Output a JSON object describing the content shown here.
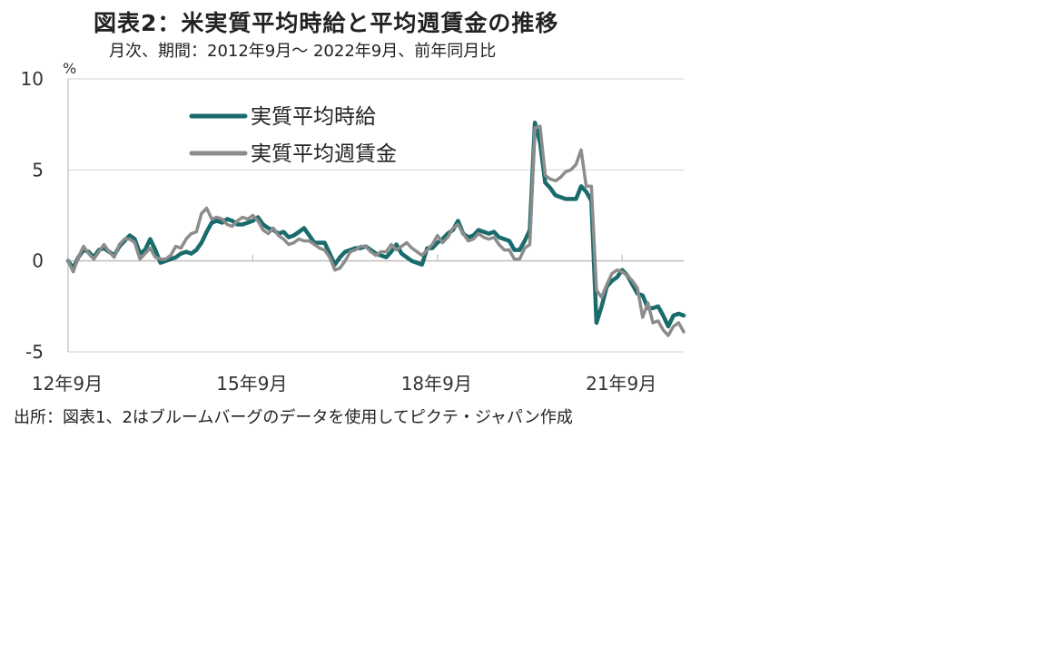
{
  "title": "図表2：米実質平均時給と平均週賃金の推移",
  "subtitle": "月次、期間：2012年9月～ 2022年9月、前年同月比",
  "source": "出所：図表1、2はブルームバーグのデータを使用してピクテ・ジャパン作成",
  "colors": {
    "series1": "#1a6b6b",
    "series2": "#8c8c8c",
    "grid": "#d9d9d9",
    "axis": "#bfbfbf"
  },
  "chart_data": {
    "type": "line",
    "y_unit": "%",
    "ylim": [
      -5,
      10
    ],
    "yticks": [
      10,
      5,
      0,
      -5
    ],
    "xlim": [
      "2012-09",
      "2022-09"
    ],
    "xticks": [
      {
        "label": "12年9月",
        "date": "2012-09"
      },
      {
        "label": "15年9月",
        "date": "2015-09"
      },
      {
        "label": "18年9月",
        "date": "2018-09"
      },
      {
        "label": "21年9月",
        "date": "2021-09"
      }
    ],
    "grid": "horizontal",
    "legend_position": "top-left",
    "series": [
      {
        "name": "実質平均時給",
        "points": [
          [
            "2012-09",
            0.0
          ],
          [
            "2012-10",
            -0.4
          ],
          [
            "2012-11",
            0.2
          ],
          [
            "2012-12",
            0.6
          ],
          [
            "2013-01",
            0.5
          ],
          [
            "2013-02",
            0.2
          ],
          [
            "2013-03",
            0.6
          ],
          [
            "2013-04",
            0.7
          ],
          [
            "2013-05",
            0.5
          ],
          [
            "2013-06",
            0.3
          ],
          [
            "2013-07",
            0.8
          ],
          [
            "2013-08",
            1.1
          ],
          [
            "2013-09",
            1.4
          ],
          [
            "2013-10",
            1.2
          ],
          [
            "2013-11",
            0.4
          ],
          [
            "2013-12",
            0.6
          ],
          [
            "2014-01",
            1.2
          ],
          [
            "2014-02",
            0.6
          ],
          [
            "2014-03",
            -0.1
          ],
          [
            "2014-04",
            0.0
          ],
          [
            "2014-05",
            0.1
          ],
          [
            "2014-06",
            0.2
          ],
          [
            "2014-07",
            0.4
          ],
          [
            "2014-08",
            0.5
          ],
          [
            "2014-09",
            0.4
          ],
          [
            "2014-10",
            0.6
          ],
          [
            "2014-11",
            1.0
          ],
          [
            "2014-12",
            1.6
          ],
          [
            "2015-01",
            2.1
          ],
          [
            "2015-02",
            2.2
          ],
          [
            "2015-03",
            2.1
          ],
          [
            "2015-04",
            2.3
          ],
          [
            "2015-05",
            2.2
          ],
          [
            "2015-06",
            2.0
          ],
          [
            "2015-07",
            2.0
          ],
          [
            "2015-08",
            2.1
          ],
          [
            "2015-09",
            2.2
          ],
          [
            "2015-10",
            2.4
          ],
          [
            "2015-11",
            2.0
          ],
          [
            "2015-12",
            1.8
          ],
          [
            "2016-01",
            1.7
          ],
          [
            "2016-02",
            1.5
          ],
          [
            "2016-03",
            1.6
          ],
          [
            "2016-04",
            1.3
          ],
          [
            "2016-05",
            1.4
          ],
          [
            "2016-06",
            1.6
          ],
          [
            "2016-07",
            1.8
          ],
          [
            "2016-08",
            1.4
          ],
          [
            "2016-09",
            1.0
          ],
          [
            "2016-10",
            1.0
          ],
          [
            "2016-11",
            1.0
          ],
          [
            "2016-12",
            0.4
          ],
          [
            "2017-01",
            -0.2
          ],
          [
            "2017-02",
            0.2
          ],
          [
            "2017-03",
            0.5
          ],
          [
            "2017-04",
            0.6
          ],
          [
            "2017-05",
            0.7
          ],
          [
            "2017-06",
            0.7
          ],
          [
            "2017-07",
            0.8
          ],
          [
            "2017-08",
            0.6
          ],
          [
            "2017-09",
            0.4
          ],
          [
            "2017-10",
            0.3
          ],
          [
            "2017-11",
            0.2
          ],
          [
            "2017-12",
            0.5
          ],
          [
            "2018-01",
            0.9
          ],
          [
            "2018-02",
            0.4
          ],
          [
            "2018-03",
            0.2
          ],
          [
            "2018-04",
            0.0
          ],
          [
            "2018-05",
            -0.1
          ],
          [
            "2018-06",
            -0.2
          ],
          [
            "2018-07",
            0.7
          ],
          [
            "2018-08",
            0.7
          ],
          [
            "2018-09",
            1.0
          ],
          [
            "2018-10",
            1.2
          ],
          [
            "2018-11",
            1.5
          ],
          [
            "2018-12",
            1.7
          ],
          [
            "2019-01",
            2.2
          ],
          [
            "2019-02",
            1.5
          ],
          [
            "2019-03",
            1.3
          ],
          [
            "2019-04",
            1.4
          ],
          [
            "2019-05",
            1.7
          ],
          [
            "2019-06",
            1.6
          ],
          [
            "2019-07",
            1.5
          ],
          [
            "2019-08",
            1.6
          ],
          [
            "2019-09",
            1.3
          ],
          [
            "2019-10",
            1.2
          ],
          [
            "2019-11",
            1.1
          ],
          [
            "2019-12",
            0.6
          ],
          [
            "2020-01",
            0.6
          ],
          [
            "2020-02",
            1.1
          ],
          [
            "2020-03",
            1.7
          ],
          [
            "2020-04",
            7.6
          ],
          [
            "2020-05",
            6.5
          ],
          [
            "2020-06",
            4.3
          ],
          [
            "2020-07",
            4.0
          ],
          [
            "2020-08",
            3.6
          ],
          [
            "2020-09",
            3.5
          ],
          [
            "2020-10",
            3.4
          ],
          [
            "2020-11",
            3.4
          ],
          [
            "2020-12",
            3.4
          ],
          [
            "2021-01",
            4.1
          ],
          [
            "2021-02",
            3.8
          ],
          [
            "2021-03",
            3.3
          ],
          [
            "2021-04",
            -3.4
          ],
          [
            "2021-05",
            -2.5
          ],
          [
            "2021-06",
            -1.4
          ],
          [
            "2021-07",
            -1.1
          ],
          [
            "2021-08",
            -0.9
          ],
          [
            "2021-09",
            -0.5
          ],
          [
            "2021-10",
            -0.8
          ],
          [
            "2021-11",
            -1.3
          ],
          [
            "2021-12",
            -1.8
          ],
          [
            "2022-01",
            -1.9
          ],
          [
            "2022-02",
            -2.6
          ],
          [
            "2022-03",
            -2.6
          ],
          [
            "2022-04",
            -2.5
          ],
          [
            "2022-05",
            -3.0
          ],
          [
            "2022-06",
            -3.6
          ],
          [
            "2022-07",
            -3.0
          ],
          [
            "2022-08",
            -2.9
          ],
          [
            "2022-09",
            -3.0
          ]
        ]
      },
      {
        "name": "実質平均週賃金",
        "points": [
          [
            "2012-09",
            0.0
          ],
          [
            "2012-10",
            -0.6
          ],
          [
            "2012-11",
            0.2
          ],
          [
            "2012-12",
            0.8
          ],
          [
            "2013-01",
            0.4
          ],
          [
            "2013-02",
            0.1
          ],
          [
            "2013-03",
            0.5
          ],
          [
            "2013-04",
            0.9
          ],
          [
            "2013-05",
            0.5
          ],
          [
            "2013-06",
            0.2
          ],
          [
            "2013-07",
            0.9
          ],
          [
            "2013-08",
            1.2
          ],
          [
            "2013-09",
            1.2
          ],
          [
            "2013-10",
            1.0
          ],
          [
            "2013-11",
            0.1
          ],
          [
            "2013-12",
            0.4
          ],
          [
            "2014-01",
            0.7
          ],
          [
            "2014-02",
            0.2
          ],
          [
            "2014-03",
            0.1
          ],
          [
            "2014-04",
            0.1
          ],
          [
            "2014-05",
            0.3
          ],
          [
            "2014-06",
            0.8
          ],
          [
            "2014-07",
            0.7
          ],
          [
            "2014-08",
            1.2
          ],
          [
            "2014-09",
            1.5
          ],
          [
            "2014-10",
            1.6
          ],
          [
            "2014-11",
            2.6
          ],
          [
            "2014-12",
            2.9
          ],
          [
            "2015-01",
            2.3
          ],
          [
            "2015-02",
            2.4
          ],
          [
            "2015-03",
            2.3
          ],
          [
            "2015-04",
            2.0
          ],
          [
            "2015-05",
            1.9
          ],
          [
            "2015-06",
            2.2
          ],
          [
            "2015-07",
            2.4
          ],
          [
            "2015-08",
            2.3
          ],
          [
            "2015-09",
            2.5
          ],
          [
            "2015-10",
            2.2
          ],
          [
            "2015-11",
            1.7
          ],
          [
            "2015-12",
            1.5
          ],
          [
            "2016-01",
            1.8
          ],
          [
            "2016-02",
            1.4
          ],
          [
            "2016-03",
            1.2
          ],
          [
            "2016-04",
            0.9
          ],
          [
            "2016-05",
            1.0
          ],
          [
            "2016-06",
            1.2
          ],
          [
            "2016-07",
            1.1
          ],
          [
            "2016-08",
            1.1
          ],
          [
            "2016-09",
            0.9
          ],
          [
            "2016-10",
            0.7
          ],
          [
            "2016-11",
            0.6
          ],
          [
            "2016-12",
            0.2
          ],
          [
            "2017-01",
            -0.5
          ],
          [
            "2017-02",
            -0.4
          ],
          [
            "2017-03",
            0.0
          ],
          [
            "2017-04",
            0.5
          ],
          [
            "2017-05",
            0.6
          ],
          [
            "2017-06",
            0.8
          ],
          [
            "2017-07",
            0.8
          ],
          [
            "2017-08",
            0.5
          ],
          [
            "2017-09",
            0.3
          ],
          [
            "2017-10",
            0.5
          ],
          [
            "2017-11",
            0.5
          ],
          [
            "2017-12",
            0.9
          ],
          [
            "2018-01",
            0.6
          ],
          [
            "2018-02",
            0.8
          ],
          [
            "2018-03",
            1.0
          ],
          [
            "2018-04",
            0.7
          ],
          [
            "2018-05",
            0.5
          ],
          [
            "2018-06",
            0.3
          ],
          [
            "2018-07",
            0.6
          ],
          [
            "2018-08",
            0.9
          ],
          [
            "2018-09",
            1.4
          ],
          [
            "2018-10",
            1.0
          ],
          [
            "2018-11",
            1.3
          ],
          [
            "2018-12",
            1.8
          ],
          [
            "2019-01",
            2.0
          ],
          [
            "2019-02",
            1.5
          ],
          [
            "2019-03",
            1.1
          ],
          [
            "2019-04",
            1.2
          ],
          [
            "2019-05",
            1.5
          ],
          [
            "2019-06",
            1.3
          ],
          [
            "2019-07",
            1.2
          ],
          [
            "2019-08",
            1.3
          ],
          [
            "2019-09",
            0.9
          ],
          [
            "2019-10",
            0.6
          ],
          [
            "2019-11",
            0.6
          ],
          [
            "2019-12",
            0.1
          ],
          [
            "2020-01",
            0.1
          ],
          [
            "2020-02",
            0.7
          ],
          [
            "2020-03",
            0.9
          ],
          [
            "2020-04",
            7.3
          ],
          [
            "2020-05",
            7.4
          ],
          [
            "2020-06",
            4.7
          ],
          [
            "2020-07",
            4.5
          ],
          [
            "2020-08",
            4.4
          ],
          [
            "2020-09",
            4.6
          ],
          [
            "2020-10",
            4.9
          ],
          [
            "2020-11",
            5.0
          ],
          [
            "2020-12",
            5.3
          ],
          [
            "2021-01",
            6.1
          ],
          [
            "2021-02",
            4.1
          ],
          [
            "2021-03",
            4.1
          ],
          [
            "2021-04",
            -1.6
          ],
          [
            "2021-05",
            -2.0
          ],
          [
            "2021-06",
            -1.3
          ],
          [
            "2021-07",
            -0.7
          ],
          [
            "2021-08",
            -0.5
          ],
          [
            "2021-09",
            -0.6
          ],
          [
            "2021-10",
            -0.8
          ],
          [
            "2021-11",
            -1.1
          ],
          [
            "2021-12",
            -1.5
          ],
          [
            "2022-01",
            -3.1
          ],
          [
            "2022-02",
            -2.3
          ],
          [
            "2022-03",
            -3.4
          ],
          [
            "2022-04",
            -3.3
          ],
          [
            "2022-05",
            -3.8
          ],
          [
            "2022-06",
            -4.1
          ],
          [
            "2022-07",
            -3.6
          ],
          [
            "2022-08",
            -3.4
          ],
          [
            "2022-09",
            -3.9
          ]
        ]
      }
    ]
  }
}
